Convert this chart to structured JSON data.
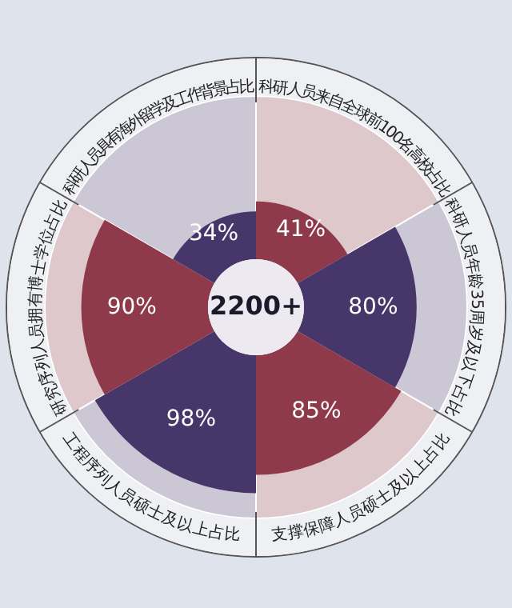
{
  "chart_data": {
    "type": "other",
    "annotations": [
      "2200+"
    ],
    "categories": [
      "科研人员来自全球前100名高校占比",
      "科研人员年龄35周岁及以下占比",
      "支撑保障人员硕士及以上占比",
      "工程序列人员硕士及以上占比",
      "研究序列人员拥有博士学位占比",
      "科研人员具有海外留学及工作背景占比"
    ],
    "values": [
      41,
      80,
      85,
      98,
      90,
      34
    ],
    "value_labels": [
      "41%",
      "80%",
      "85%",
      "98%",
      "90%",
      "34%"
    ],
    "colors": [
      "#8e3a4a",
      "#46366a",
      "#8e3a4a",
      "#46366a",
      "#8e3a4a",
      "#46366a"
    ]
  }
}
